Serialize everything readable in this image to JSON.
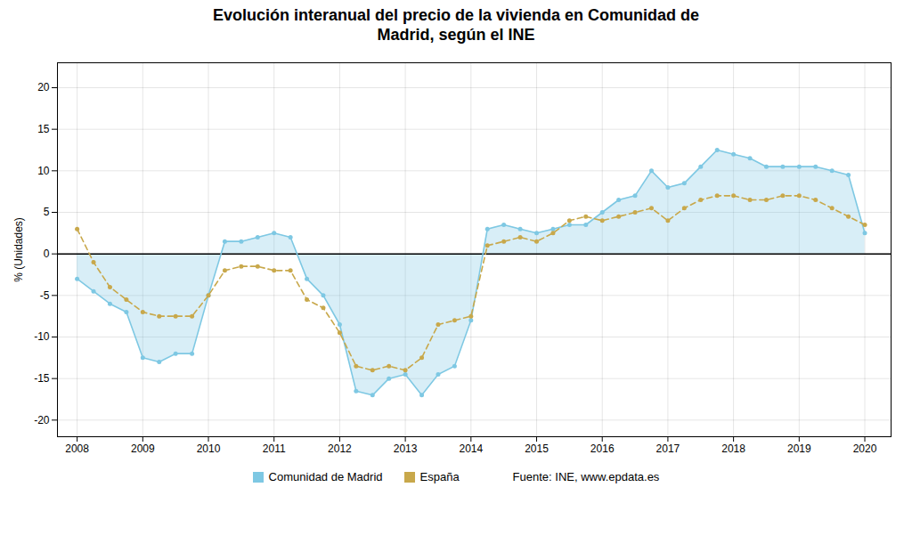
{
  "chart_data": {
    "type": "line",
    "title": "Evolución interanual del precio de la vivienda en Comunidad de\nMadrid, según el INE",
    "ylabel": "% (Unidades)",
    "source": "Fuente: INE, www.epdata.es",
    "x": [
      2008.0,
      2008.25,
      2008.5,
      2008.75,
      2009.0,
      2009.25,
      2009.5,
      2009.75,
      2010.0,
      2010.25,
      2010.5,
      2010.75,
      2011.0,
      2011.25,
      2011.5,
      2011.75,
      2012.0,
      2012.25,
      2012.5,
      2012.75,
      2013.0,
      2013.25,
      2013.5,
      2013.75,
      2014.0,
      2014.25,
      2014.5,
      2014.75,
      2015.0,
      2015.25,
      2015.5,
      2015.75,
      2016.0,
      2016.25,
      2016.5,
      2016.75,
      2017.0,
      2017.25,
      2017.5,
      2017.75,
      2018.0,
      2018.25,
      2018.5,
      2018.75,
      2019.0,
      2019.25,
      2019.5,
      2019.75,
      2020.0
    ],
    "series": [
      {
        "name": "Comunidad de Madrid",
        "color": "#7ec8e3",
        "type": "area",
        "line_style": "solid",
        "marker": "circle",
        "values": [
          -3.0,
          -4.5,
          -6.0,
          -7.0,
          -12.5,
          -13.0,
          -12.0,
          -12.0,
          -5.0,
          1.5,
          1.5,
          2.0,
          2.5,
          2.0,
          -3.0,
          -5.0,
          -8.5,
          -16.5,
          -17.0,
          -15.0,
          -14.5,
          -17.0,
          -14.5,
          -13.5,
          -8.0,
          3.0,
          3.5,
          3.0,
          2.5,
          3.0,
          3.5,
          3.5,
          5.0,
          6.5,
          7.0,
          10.0,
          8.0,
          8.5,
          10.5,
          12.5,
          12.0,
          11.5,
          10.5,
          10.5,
          10.5,
          10.5,
          10.0,
          9.5,
          2.5
        ]
      },
      {
        "name": "España",
        "color": "#c8a84b",
        "type": "line",
        "line_style": "dashed",
        "marker": "circle",
        "values": [
          3.0,
          -1.0,
          -4.0,
          -5.5,
          -7.0,
          -7.5,
          -7.5,
          -7.5,
          -5.0,
          -2.0,
          -1.5,
          -1.5,
          -2.0,
          -2.0,
          -5.5,
          -6.5,
          -9.5,
          -13.5,
          -14.0,
          -13.5,
          -14.0,
          -12.5,
          -8.5,
          -8.0,
          -7.5,
          1.0,
          1.5,
          2.0,
          1.5,
          2.5,
          4.0,
          4.5,
          4.0,
          4.5,
          5.0,
          5.5,
          4.0,
          5.5,
          6.5,
          7.0,
          7.0,
          6.5,
          6.5,
          7.0,
          7.0,
          6.5,
          5.5,
          4.5,
          3.5
        ]
      }
    ],
    "xlim": [
      2007.7,
      2020.4
    ],
    "xticks": [
      2008,
      2009,
      2010,
      2011,
      2012,
      2013,
      2014,
      2015,
      2016,
      2017,
      2018,
      2019,
      2020
    ],
    "ylim": [
      -22,
      23
    ],
    "yticks": [
      -20,
      -15,
      -10,
      -5,
      0,
      5,
      10,
      15,
      20
    ],
    "grid": true,
    "legend": "bottom"
  }
}
